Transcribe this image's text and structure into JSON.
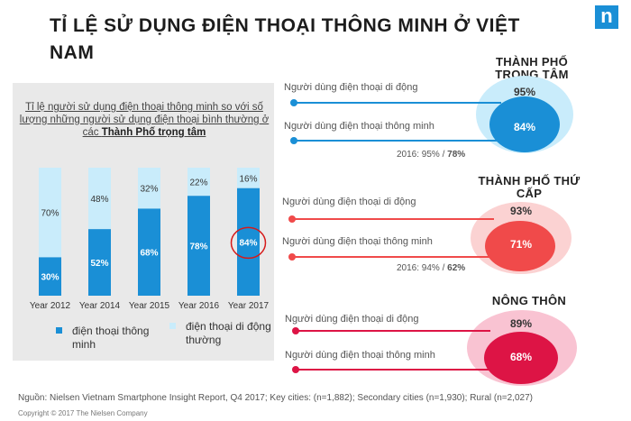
{
  "title": "TỈ LỆ SỬ DỤNG ĐIỆN THOẠI THÔNG MINH Ở VIỆT NAM",
  "logo": "n",
  "subtitle_pre": "Tỉ lệ người sử dụng điện thoại thông minh so với số lượng những người sử dụng điện thoại bình thường ở các ",
  "subtitle_bold": "Thành Phố trọng tâm",
  "chart_data": [
    {
      "type": "bar",
      "stacked": true,
      "categories": [
        "Year 2012",
        "Year 2014",
        "Year 2015",
        "Year 2016",
        "Year 2017"
      ],
      "series": [
        {
          "name": "điện thoại thông minh",
          "values": [
            30,
            52,
            68,
            78,
            84
          ],
          "color": "#1a8fd6"
        },
        {
          "name": "điện thoại di động thường",
          "values": [
            70,
            48,
            32,
            22,
            16
          ],
          "color": "#c9ecfb"
        }
      ],
      "ylim": [
        0,
        100
      ],
      "highlight": "Year 2017",
      "highlight_color": "#d61a1a"
    }
  ],
  "legend": [
    {
      "label": "điện thoại thông minh",
      "color": "#1a8fd6"
    },
    {
      "label": "điện thoại di động thường",
      "color": "#c9ecfb"
    }
  ],
  "sections": [
    {
      "title": "THÀNH PHỐ TRỌNG TÂM",
      "mobile_label": "Người dùng điện thoại di động",
      "smart_label": "Người dùng điện thoại thông minh",
      "mobile_pct": "95%",
      "smart_pct": "84%",
      "note_pre": "2016: 95% / ",
      "note_bold": "78%",
      "color_outer": "#c9ecfb",
      "color_inner": "#1a8fd6",
      "line_color": "#1a8fd6"
    },
    {
      "title": "THÀNH PHỐ THỨ CẤP",
      "mobile_label": "Người dùng điện thoại di động",
      "smart_label": "Người dùng điện thoại thông minh",
      "mobile_pct": "93%",
      "smart_pct": "71%",
      "note_pre": "2016: 94% / ",
      "note_bold": "62%",
      "color_outer": "#fbd2d2",
      "color_inner": "#f04a4a",
      "line_color": "#f04a4a"
    },
    {
      "title": "NÔNG THÔN",
      "mobile_label": "Người dùng điện thoại di động",
      "smart_label": "Người dùng điện thoại thông minh",
      "mobile_pct": "89%",
      "smart_pct": "68%",
      "note_pre": "",
      "note_bold": "",
      "color_outer": "#f9c3d2",
      "color_inner": "#dd1445",
      "line_color": "#dd1445"
    }
  ],
  "source": "Nguồn: Nielsen Vietnam Smartphone Insight Report, Q4 2017; Key cities: (n=1,882); Secondary cities (n=1,930); Rural (n=2,027)",
  "copyright": "Copyright © 2017 The Nielsen Company"
}
